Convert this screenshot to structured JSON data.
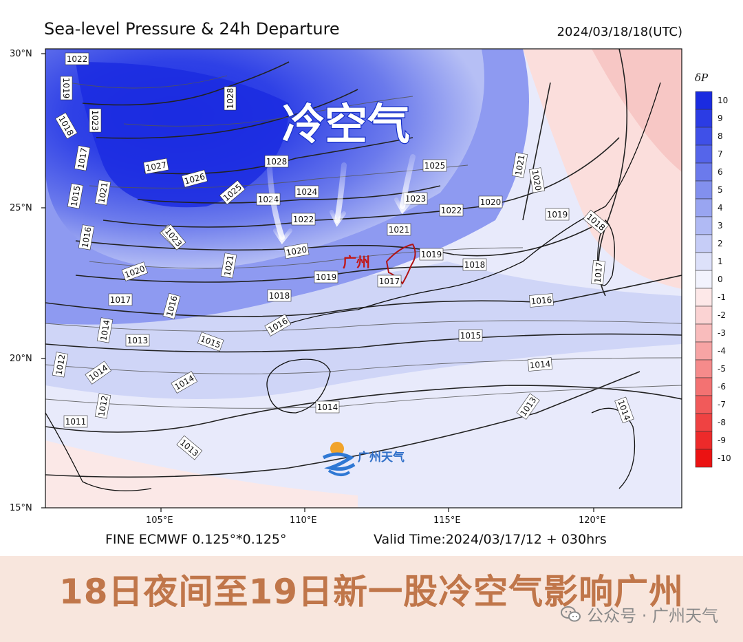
{
  "header": {
    "title": "Sea-level Pressure & 24h Departure",
    "datetime": "2024/03/18/18(UTC)"
  },
  "footer": {
    "model": "FINE ECMWF 0.125°*0.125°",
    "valid": "Valid Time:2024/03/17/12 + 030hrs"
  },
  "map": {
    "lat_labels": [
      "30°N",
      "25°N",
      "20°N",
      "15°N"
    ],
    "lon_labels": [
      "105°E",
      "110°E",
      "115°E",
      "120°E"
    ],
    "cold_air_label": "冷空气",
    "city_label": "广州",
    "logo_text": "广州天气",
    "isobar_labels": [
      "1022",
      "1019",
      "1018",
      "1023",
      "1017",
      "1015",
      "1021",
      "1016",
      "1020",
      "1023",
      "1017",
      "1014",
      "1013",
      "1016",
      "1015",
      "1012",
      "1014",
      "1012",
      "1011",
      "1013",
      "1014",
      "1028",
      "1027",
      "1026",
      "1025",
      "1024",
      "1028",
      "1024",
      "1022",
      "1020",
      "1021",
      "1018",
      "1016",
      "1019",
      "1023",
      "1021",
      "1017",
      "1023",
      "1022",
      "1019",
      "1025",
      "1020",
      "1018",
      "1016",
      "1015",
      "1014",
      "1021",
      "1020",
      "1019",
      "1018",
      "1017",
      "1014",
      "1013",
      "1014"
    ],
    "isobar_contour_values": [
      1028,
      1024,
      1020,
      1017,
      1016,
      1015,
      1014,
      1013
    ]
  },
  "legend": {
    "title": "δP",
    "ticks": [
      "10",
      "9",
      "8",
      "7",
      "6",
      "5",
      "4",
      "3",
      "2",
      "1",
      "0",
      "-1",
      "-2",
      "-3",
      "-4",
      "-5",
      "-6",
      "-7",
      "-8",
      "-9",
      "-10"
    ],
    "colors": [
      "#1a2be0",
      "#2b3ce4",
      "#3f50e8",
      "#5565ea",
      "#6b7aec",
      "#8290ee",
      "#99a5f1",
      "#b0baf4",
      "#c6cdf7",
      "#dde1fa",
      "#f2f3fd",
      "#fde8e8",
      "#fbd3d3",
      "#f9bcbc",
      "#f7a4a4",
      "#f58b8b",
      "#f37272",
      "#f15a5a",
      "#ef4242",
      "#ed2a2a",
      "#eb1212"
    ]
  },
  "banner": {
    "headline": "18日夜间至19日新一股冷空气影响广州",
    "watermark": "公众号 · 广州天气"
  }
}
